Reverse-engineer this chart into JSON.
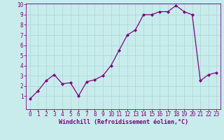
{
  "x": [
    0,
    1,
    2,
    3,
    4,
    5,
    6,
    7,
    8,
    9,
    10,
    11,
    12,
    13,
    14,
    15,
    16,
    17,
    18,
    19,
    20,
    21,
    22,
    23
  ],
  "y": [
    0.7,
    1.5,
    2.5,
    3.1,
    2.2,
    2.3,
    1.0,
    2.4,
    2.6,
    3.0,
    4.0,
    5.5,
    7.0,
    7.5,
    9.0,
    9.0,
    9.3,
    9.3,
    9.9,
    9.3,
    9.0,
    2.5,
    3.1,
    3.3
  ],
  "line_color": "#800080",
  "marker_color": "#800080",
  "bg_color": "#c8ecec",
  "grid_color": "#b0d8d8",
  "xlabel": "Windchill (Refroidissement éolien,°C)",
  "xlabel_color": "#800080",
  "tick_color": "#800080",
  "ylim": [
    0,
    10
  ],
  "xlim": [
    -0.5,
    23.5
  ],
  "yticks": [
    1,
    2,
    3,
    4,
    5,
    6,
    7,
    8,
    9,
    10
  ],
  "xticks": [
    0,
    1,
    2,
    3,
    4,
    5,
    6,
    7,
    8,
    9,
    10,
    11,
    12,
    13,
    14,
    15,
    16,
    17,
    18,
    19,
    20,
    21,
    22,
    23
  ],
  "font_family": "monospace",
  "tick_fontsize": 5.5,
  "xlabel_fontsize": 6.0
}
